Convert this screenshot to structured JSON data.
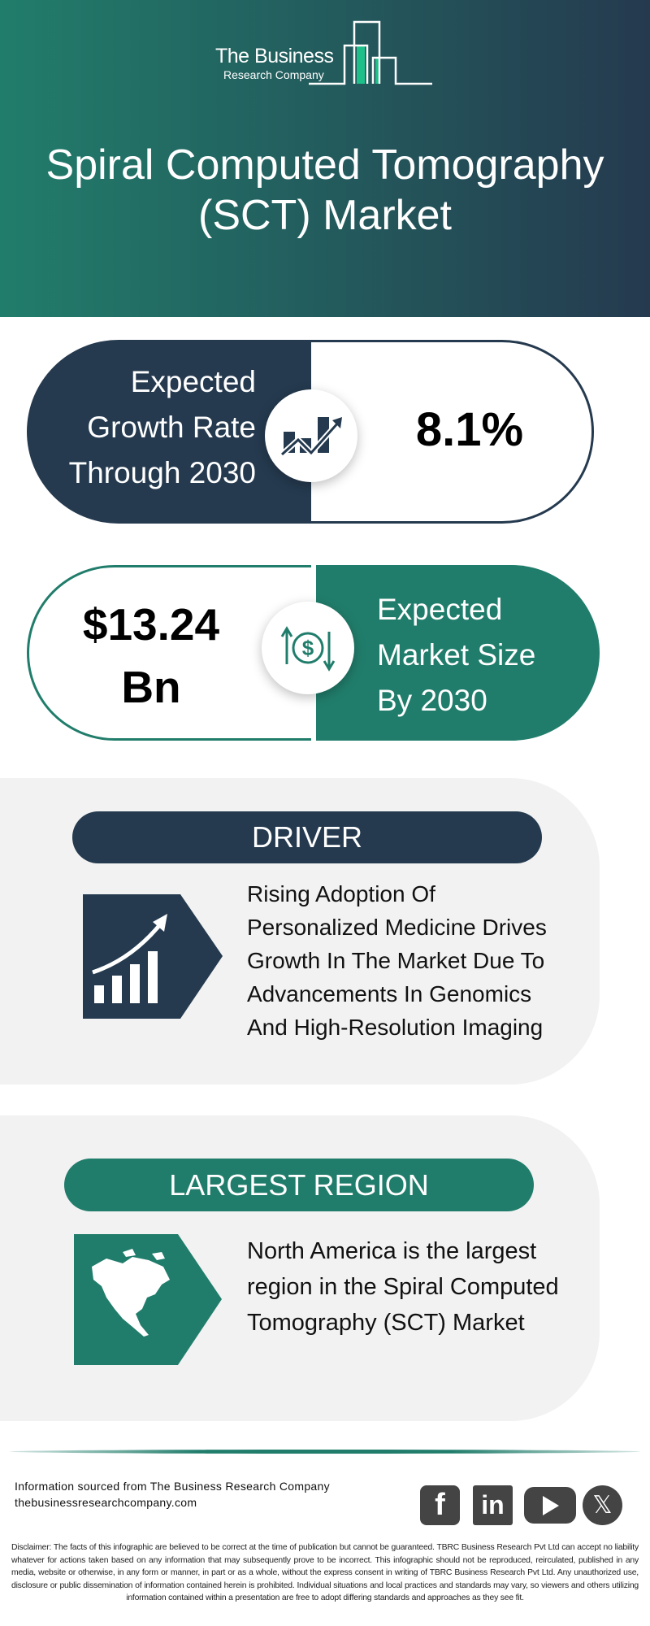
{
  "header": {
    "logo_line1": "The Business",
    "logo_line2": "Research Company",
    "title_line1": "Spiral Computed Tomography",
    "title_line2": "(SCT) Market"
  },
  "growth": {
    "label_lines": [
      "Expected",
      "Growth Rate",
      "Through 2030"
    ],
    "value": "8.1%",
    "icon": "growth-chart-icon"
  },
  "market_size": {
    "value_lines": [
      "$13.24",
      "Bn"
    ],
    "label_lines": [
      "Expected",
      "Market Size",
      "By 2030"
    ],
    "icon": "dollar-exchange-icon"
  },
  "driver": {
    "heading": "DRIVER",
    "text_lines": [
      "Rising Adoption Of",
      "Personalized Medicine Drives",
      "Growth In The Market Due To",
      "Advancements In Genomics",
      "And High-Resolution Imaging"
    ],
    "icon": "rising-bar-chart-icon"
  },
  "region": {
    "heading": "LARGEST REGION",
    "text_lines": [
      "North America is the largest",
      "region in the Spiral Computed",
      "Tomography (SCT) Market"
    ],
    "icon": "north-america-map-icon"
  },
  "footer": {
    "source": "Information sourced from The Business Research Company",
    "website": "thebusinessresearchcompany.com",
    "social": [
      "facebook",
      "linkedin",
      "youtube",
      "x"
    ],
    "disclaimer": "Disclaimer: The facts of this infographic are believed to be correct at the time of publication but cannot be guaranteed. TBRC Business Research Pvt Ltd can accept no liability whatever for actions taken based on any information that may subsequently prove to be incorrect. This infographic should not be reproduced, reirculated, published in any media, website or otherwise, in any form or manner, in part or as a whole, without the express consent in writing of TBRC Business Research Pvt Ltd. Any unauthorized use, disclosure or public dissemination of information contained herein is prohibited. Individual situations and local practices and standards may vary, so viewers and others utilizing information contained within a presentation are free to adopt differing standards and approaches as they see fit."
  },
  "colors": {
    "dark": "#253a4f",
    "green": "#217d6b",
    "panel": "#f2f2f2",
    "logo_accent": "#1fbf8a"
  }
}
